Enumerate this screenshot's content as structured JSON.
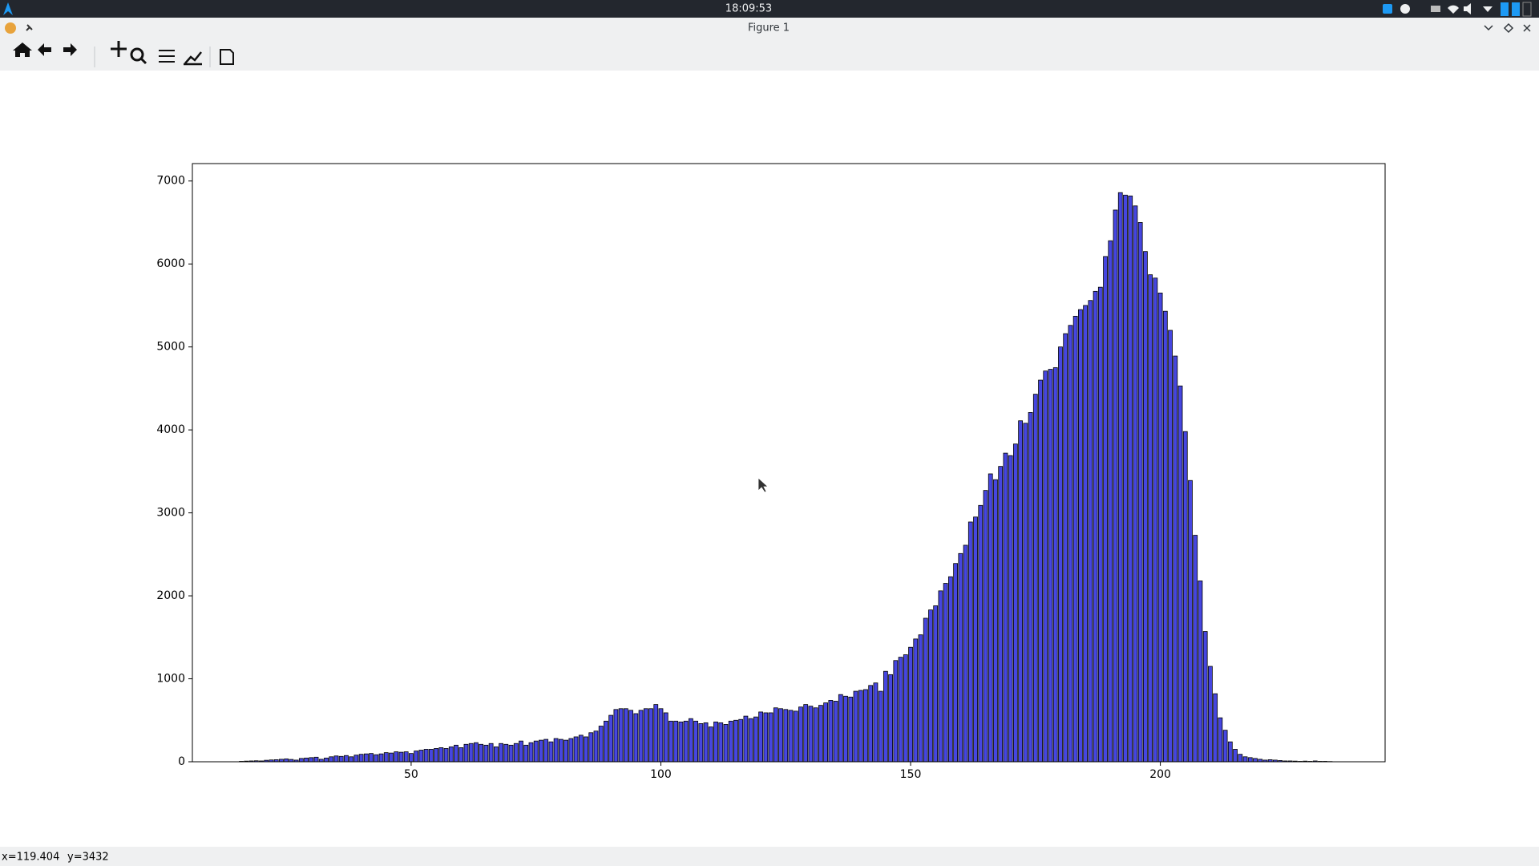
{
  "clock": "18:09:53",
  "window": {
    "title": "Figure 1"
  },
  "status": {
    "x": "x=119.404",
    "y": "y=3432"
  },
  "chart_data": {
    "type": "bar",
    "x": [
      16,
      17,
      18,
      19,
      20,
      21,
      22,
      23,
      24,
      25,
      26,
      27,
      28,
      29,
      30,
      31,
      32,
      33,
      34,
      35,
      36,
      37,
      38,
      39,
      40,
      41,
      42,
      43,
      44,
      45,
      46,
      47,
      48,
      49,
      50,
      51,
      52,
      53,
      54,
      55,
      56,
      57,
      58,
      59,
      60,
      61,
      62,
      63,
      64,
      65,
      66,
      67,
      68,
      69,
      70,
      71,
      72,
      73,
      74,
      75,
      76,
      77,
      78,
      79,
      80,
      81,
      82,
      83,
      84,
      85,
      86,
      87,
      88,
      89,
      90,
      91,
      92,
      93,
      94,
      95,
      96,
      97,
      98,
      99,
      100,
      101,
      102,
      103,
      104,
      105,
      106,
      107,
      108,
      109,
      110,
      111,
      112,
      113,
      114,
      115,
      116,
      117,
      118,
      119,
      120,
      121,
      122,
      123,
      124,
      125,
      126,
      127,
      128,
      129,
      130,
      131,
      132,
      133,
      134,
      135,
      136,
      137,
      138,
      139,
      140,
      141,
      142,
      143,
      144,
      145,
      146,
      147,
      148,
      149,
      150,
      151,
      152,
      153,
      154,
      155,
      156,
      157,
      158,
      159,
      160,
      161,
      162,
      163,
      164,
      165,
      166,
      167,
      168,
      169,
      170,
      171,
      172,
      173,
      174,
      175,
      176,
      177,
      178,
      179,
      180,
      181,
      182,
      183,
      184,
      185,
      186,
      187,
      188,
      189,
      190,
      191,
      192,
      193,
      194,
      195,
      196,
      197,
      198,
      199,
      200,
      201,
      202,
      203,
      204,
      205,
      206,
      207,
      208,
      209,
      210,
      211,
      212,
      213,
      214,
      215,
      216,
      217,
      218,
      219,
      220,
      221,
      222,
      223,
      224,
      225,
      226,
      227,
      228,
      229,
      230,
      231,
      232,
      233,
      234
    ],
    "values": [
      5,
      8,
      10,
      12,
      10,
      18,
      22,
      25,
      30,
      35,
      28,
      20,
      40,
      45,
      50,
      55,
      30,
      45,
      60,
      70,
      65,
      75,
      60,
      80,
      90,
      95,
      100,
      85,
      95,
      110,
      105,
      120,
      115,
      120,
      100,
      130,
      140,
      150,
      150,
      160,
      170,
      160,
      180,
      200,
      170,
      210,
      220,
      230,
      210,
      200,
      220,
      180,
      220,
      210,
      200,
      220,
      250,
      200,
      230,
      250,
      260,
      270,
      240,
      280,
      270,
      260,
      280,
      300,
      320,
      300,
      350,
      370,
      430,
      490,
      560,
      630,
      640,
      640,
      620,
      580,
      620,
      640,
      640,
      690,
      640,
      590,
      490,
      490,
      480,
      490,
      520,
      490,
      460,
      470,
      420,
      480,
      470,
      450,
      490,
      500,
      510,
      550,
      520,
      540,
      600,
      590,
      590,
      650,
      640,
      630,
      620,
      610,
      660,
      690,
      670,
      650,
      680,
      710,
      740,
      730,
      810,
      790,
      780,
      850,
      860,
      870,
      920,
      950,
      850,
      1090,
      1050,
      1220,
      1260,
      1290,
      1380,
      1480,
      1530,
      1730,
      1830,
      1880,
      2060,
      2150,
      2230,
      2390,
      2510,
      2610,
      2890,
      2950,
      3090,
      3270,
      3470,
      3400,
      3560,
      3720,
      3690,
      3830,
      4110,
      4080,
      4210,
      4430,
      4600,
      4710,
      4730,
      4750,
      5000,
      5160,
      5260,
      5370,
      5450,
      5500,
      5560,
      5670,
      5720,
      6090,
      6280,
      6650,
      6860,
      6830,
      6820,
      6700,
      6500,
      6150,
      5870,
      5830,
      5650,
      5430,
      5200,
      4890,
      4530,
      3980,
      3390,
      2730,
      2180,
      1570,
      1150,
      820,
      530,
      380,
      240,
      150,
      90,
      60,
      50,
      40,
      30,
      20,
      25,
      20,
      15,
      10,
      10,
      8,
      5,
      8,
      5,
      10,
      5,
      5,
      3
    ],
    "bar_width": 0.8,
    "color": "#4646e0",
    "edgecolor": "#000000",
    "xlim": [
      6.2,
      245
    ],
    "xticks": [
      50,
      100,
      150,
      200
    ],
    "ylim": [
      0,
      7210
    ],
    "yticks": [
      0,
      1000,
      2000,
      3000,
      4000,
      5000,
      6000,
      7000
    ],
    "grid": false
  }
}
